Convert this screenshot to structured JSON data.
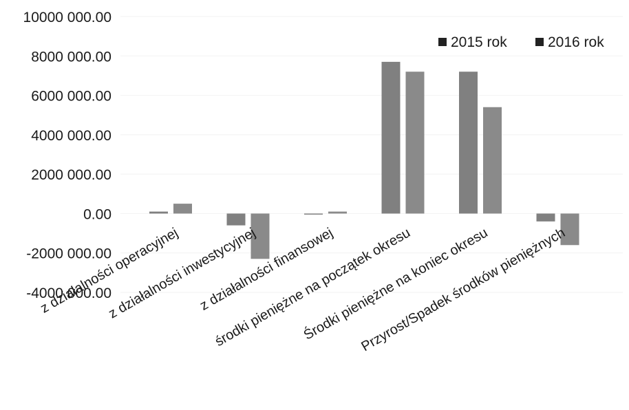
{
  "chart_data": {
    "type": "bar",
    "title": "",
    "xlabel": "",
    "ylabel": "",
    "ylim": [
      -4000000,
      10000000
    ],
    "yticks": [
      10000000,
      8000000,
      6000000,
      4000000,
      2000000,
      0,
      -2000000,
      -4000000
    ],
    "ytick_labels": [
      "10000 000.00",
      "8000 000.00",
      "6000 000.00",
      "4000 000.00",
      "2000 000.00",
      "0.00",
      "-2000 000.00",
      "-4000 000.00"
    ],
    "categories": [
      "z działalności operacyjnej",
      "z działalności inwestycyjnej",
      "z działalności finansowej",
      "środki pieniężne na początek okresu",
      "Środki pieniężne na koniec okresu",
      "Przyrost/Spadek środków pieniężnych"
    ],
    "series": [
      {
        "name": "2015 rok",
        "color": "#808080",
        "values": [
          100000,
          -600000,
          0,
          7700000,
          7200000,
          -400000
        ]
      },
      {
        "name": "2016 rok",
        "color": "#8a8a8a",
        "values": [
          500000,
          -2300000,
          100000,
          7200000,
          5400000,
          -1600000
        ]
      }
    ],
    "grid": true,
    "legend_position": "top-right"
  }
}
